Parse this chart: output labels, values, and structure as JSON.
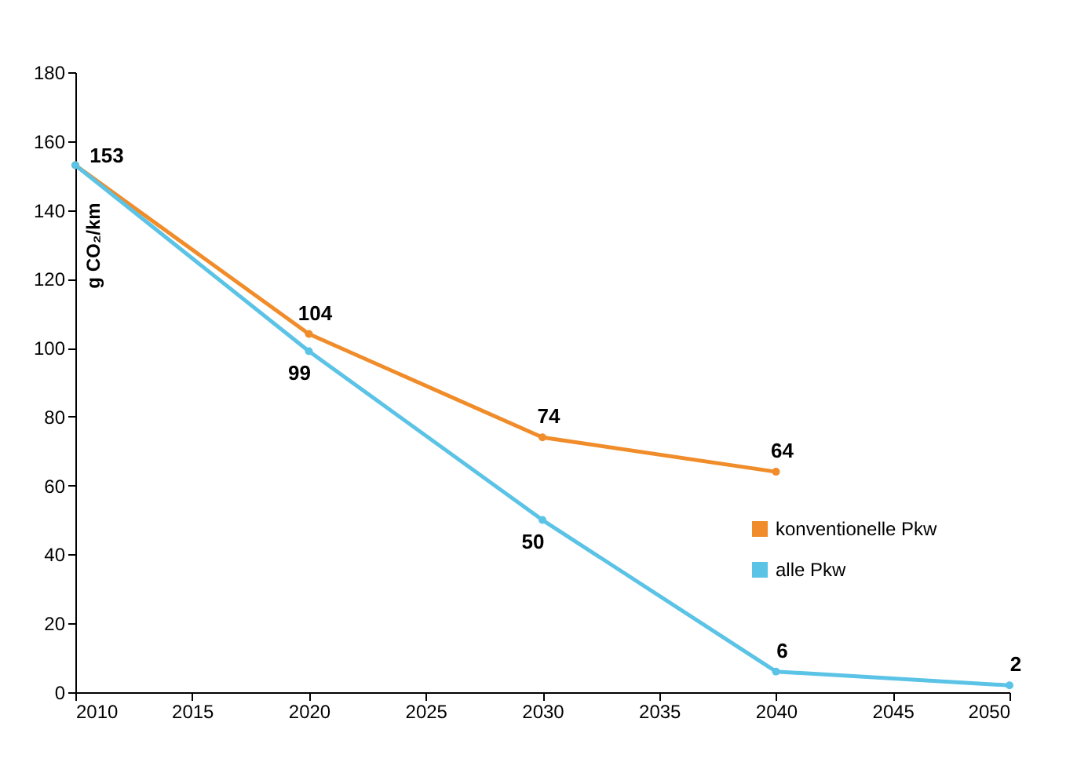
{
  "chart_data": {
    "type": "line",
    "ylabel": "g CO₂/km",
    "series": [
      {
        "name": "konventionelle Pkw",
        "color": "#f08c2a",
        "x": [
          2010,
          2020,
          2030,
          2040
        ],
        "values": [
          153,
          104,
          74,
          64
        ],
        "value_labels": [
          "153",
          "104",
          "74",
          "64"
        ]
      },
      {
        "name": "alle Pkw",
        "color": "#5bc3e6",
        "x": [
          2010,
          2020,
          2030,
          2040,
          2050
        ],
        "values": [
          153,
          99,
          50,
          6,
          2
        ],
        "value_labels": [
          null,
          "99",
          "50",
          "6",
          "2"
        ]
      }
    ],
    "xlim": [
      2010,
      2050
    ],
    "xticks": [
      2010,
      2015,
      2020,
      2025,
      2030,
      2035,
      2040,
      2045,
      2050
    ],
    "ylim": [
      0,
      180
    ],
    "yticks": [
      0,
      20,
      40,
      60,
      80,
      100,
      120,
      140,
      160,
      180
    ],
    "grid": false,
    "legend": "right",
    "marker": "circle",
    "line_style": "solid"
  }
}
